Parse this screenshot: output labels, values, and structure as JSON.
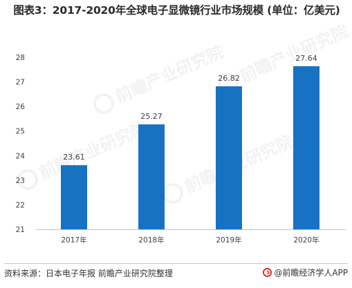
{
  "chart_data": {
    "type": "bar",
    "title": "图表3：2017-2020年全球电子显微镜行业市场规模 (单位：亿美元)",
    "categories": [
      "2017年",
      "2018年",
      "2019年",
      "2020年"
    ],
    "values": [
      23.61,
      25.27,
      26.82,
      27.64
    ],
    "data_labels": [
      "23.61",
      "25.27",
      "26.82",
      "27.64"
    ],
    "xlabel": "",
    "ylabel": "",
    "ylim": [
      21,
      28
    ],
    "yticks": [
      "21",
      "22",
      "23",
      "24",
      "25",
      "26",
      "27",
      "28"
    ],
    "grid": false,
    "legend": "none",
    "bar_color": "#1872c4"
  },
  "footer": {
    "source": "资料来源：日本电子年报 前瞻产业研究院整理",
    "brand": "@前瞻经济学人APP"
  },
  "watermark": {
    "text": "前瞻产业研究院",
    "icon": "qianzhan-logo-icon"
  },
  "colors": {
    "axis": "#bfbfbf",
    "text": "#404040",
    "brand_red": "#e2231a"
  }
}
